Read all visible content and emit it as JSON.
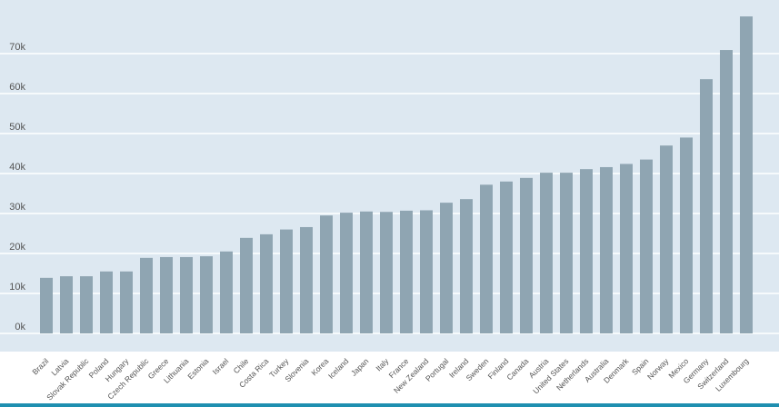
{
  "chart_data": {
    "type": "bar",
    "title": "",
    "xlabel": "",
    "ylabel": "",
    "ylim": [
      0,
      80000
    ],
    "yticks": [
      0,
      10000,
      20000,
      30000,
      40000,
      50000,
      60000,
      70000
    ],
    "ytick_labels": [
      "0k",
      "10k",
      "20k",
      "30k",
      "40k",
      "50k",
      "60k",
      "70k"
    ],
    "grid": true,
    "bar_color": "#8fa5b2",
    "background_color": "#dde8f1",
    "categories": [
      "Brazil",
      "Latvia",
      "Slovak Republic",
      "Poland",
      "Hungary",
      "Czech Republic",
      "Greece",
      "Lithuania",
      "Estonia",
      "Israel",
      "Chile",
      "Costa Rica",
      "Turkey",
      "Slovenia",
      "Korea",
      "Iceland",
      "Japan",
      "Italy",
      "France",
      "New Zealand",
      "Portugal",
      "Ireland",
      "Sweden",
      "Finland",
      "Canada",
      "Austria",
      "United States",
      "Netherlands",
      "Australia",
      "Denmark",
      "Spain",
      "Norway",
      "Mexico",
      "Germany",
      "Switzerland",
      "Luxembourg"
    ],
    "values": [
      13900,
      14300,
      14300,
      15500,
      15500,
      18900,
      19100,
      19100,
      19300,
      20500,
      23900,
      24800,
      26000,
      26600,
      29500,
      30200,
      30500,
      30400,
      30700,
      30800,
      32700,
      33600,
      37200,
      38000,
      38900,
      40200,
      40200,
      41100,
      41600,
      42400,
      43500,
      47000,
      49000,
      63600,
      70900,
      79300
    ]
  }
}
